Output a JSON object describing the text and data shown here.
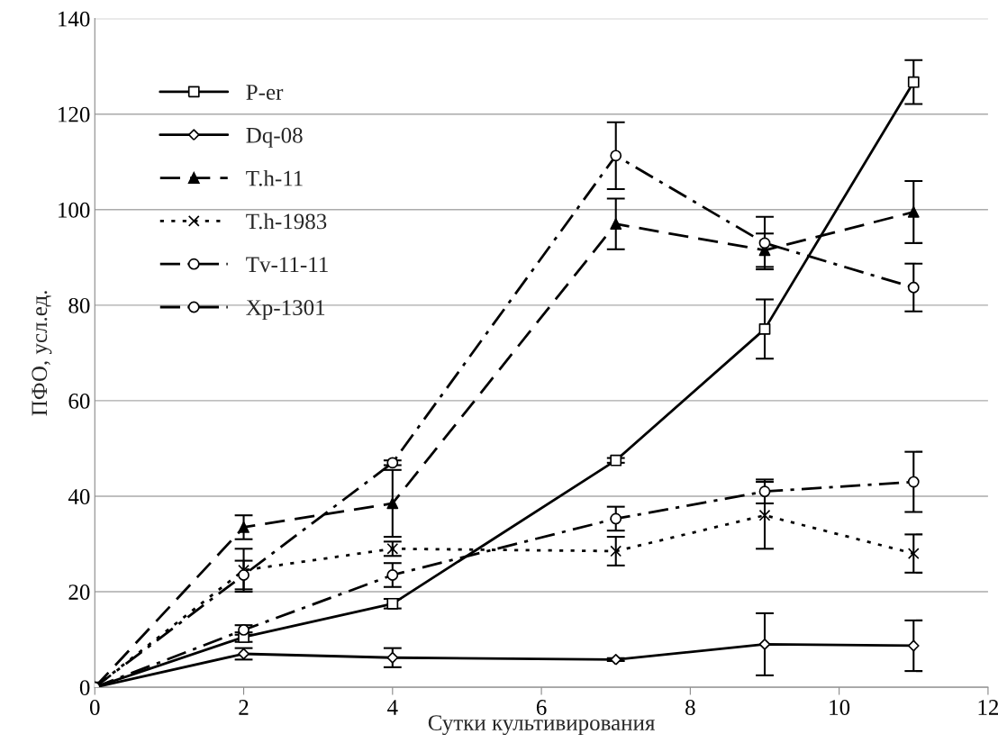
{
  "chart_data": {
    "type": "line",
    "xlabel": "Сутки культивирования",
    "ylabel": "ПФО, усл.ед.",
    "x": [
      0,
      2,
      4,
      7,
      9,
      11
    ],
    "xlim": [
      0,
      12
    ],
    "xticks": [
      0,
      2,
      4,
      6,
      8,
      10,
      12
    ],
    "ylim": [
      0,
      140
    ],
    "yticks": [
      0,
      20,
      40,
      60,
      80,
      100,
      120,
      140
    ],
    "grid": "y",
    "legend": "top left",
    "series": [
      {
        "name": "P-er",
        "color": "#000000",
        "marker": "square",
        "line_style": "solid",
        "values": [
          0,
          10.5,
          17.5,
          47.5,
          75,
          126.7
        ],
        "errors": [
          null,
          1,
          1,
          0.5,
          6.2,
          4.6
        ]
      },
      {
        "name": "Dq-08",
        "color": "#000000",
        "marker": "diamond",
        "line_style": "solid",
        "values": [
          0,
          7,
          6.2,
          5.8,
          9,
          8.7
        ],
        "errors": [
          null,
          1.2,
          2,
          0.3,
          6.5,
          5.3
        ]
      },
      {
        "name": "T.h-11",
        "color": "#000000",
        "marker": "triangle",
        "line_style": "dashed",
        "values": [
          0,
          33.5,
          38.5,
          97,
          91.5,
          99.5
        ],
        "errors": [
          null,
          2.5,
          7,
          5.3,
          3.5,
          6.5
        ]
      },
      {
        "name": "T.h-1983",
        "color": "#000000",
        "marker": "cross",
        "line_style": "dotted",
        "values": [
          0,
          24.5,
          29,
          28.5,
          36,
          28
        ],
        "errors": [
          null,
          4.5,
          1.5,
          3,
          7,
          4
        ]
      },
      {
        "name": "Tv-11-11",
        "color": "#000000",
        "marker": "circle",
        "line_style": "dashdot",
        "values": [
          0,
          23.5,
          47,
          111.3,
          93,
          83.7
        ],
        "errors": [
          null,
          3,
          0.5,
          7,
          5.5,
          5
        ]
      },
      {
        "name": "Xp-1301",
        "color": "#000000",
        "marker": "circle",
        "line_style": "dashdot",
        "values": [
          0,
          12,
          23.5,
          35.3,
          41,
          43
        ],
        "errors": [
          null,
          1,
          2.5,
          2.5,
          2.5,
          6.3
        ]
      }
    ]
  }
}
